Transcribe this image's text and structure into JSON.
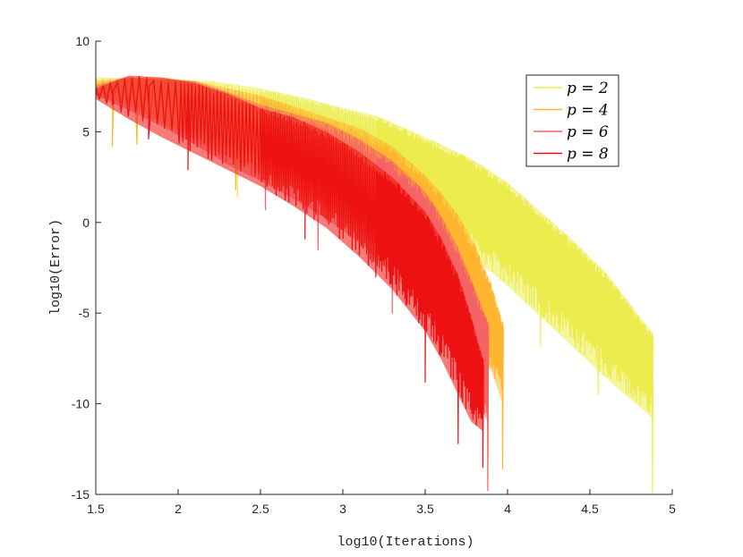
{
  "chart_data": {
    "type": "line",
    "title": "",
    "xlabel": "log10(Iterations)",
    "ylabel": "log10(Error)",
    "xlim": [
      1.5,
      5
    ],
    "ylim": [
      -15,
      10
    ],
    "xticks": [
      "1.5",
      "2",
      "2.5",
      "3",
      "3.5",
      "4",
      "4.5",
      "5"
    ],
    "yticks": [
      "10",
      "5",
      "0",
      "-5",
      "-10",
      "-15"
    ],
    "grid": false,
    "legend_position": "top-right",
    "series": [
      {
        "name": "p = 2",
        "legend_label": "p = 2",
        "color": "#ecec4f",
        "upper": [
          [
            1.5,
            8.0
          ],
          [
            1.9,
            7.9
          ],
          [
            2.2,
            7.8
          ],
          [
            2.5,
            7.4
          ],
          [
            2.8,
            6.8
          ],
          [
            3.0,
            6.3
          ],
          [
            3.2,
            5.9
          ],
          [
            3.4,
            5.1
          ],
          [
            3.6,
            4.3
          ],
          [
            3.8,
            3.4
          ],
          [
            4.0,
            2.2
          ],
          [
            4.2,
            0.6
          ],
          [
            4.4,
            -1.0
          ],
          [
            4.6,
            -2.8
          ],
          [
            4.88,
            -6.1
          ]
        ],
        "lower": [
          [
            1.5,
            7.5
          ],
          [
            1.9,
            6.5
          ],
          [
            2.2,
            5.5
          ],
          [
            2.5,
            4.6
          ],
          [
            2.8,
            3.7
          ],
          [
            3.0,
            2.9
          ],
          [
            3.2,
            1.9
          ],
          [
            3.4,
            0.8
          ],
          [
            3.6,
            -0.5
          ],
          [
            3.8,
            -2.0
          ],
          [
            4.0,
            -3.5
          ],
          [
            4.2,
            -5.2
          ],
          [
            4.4,
            -6.9
          ],
          [
            4.6,
            -8.6
          ],
          [
            4.88,
            -10.8
          ]
        ],
        "dips": [
          [
            2.36,
            1.4
          ],
          [
            2.6,
            2.1
          ],
          [
            3.2,
            0.6
          ],
          [
            3.6,
            -3.2
          ],
          [
            4.2,
            -6.8
          ],
          [
            4.55,
            -9.5
          ],
          [
            4.88,
            -15.0
          ]
        ]
      },
      {
        "name": "p = 4",
        "legend_label": "p = 4",
        "color": "#ffb52e",
        "upper": [
          [
            1.5,
            7.8
          ],
          [
            1.7,
            8.0
          ],
          [
            1.9,
            8.0
          ],
          [
            2.1,
            7.8
          ],
          [
            2.3,
            7.4
          ],
          [
            2.5,
            7.0
          ],
          [
            2.7,
            6.4
          ],
          [
            2.9,
            5.8
          ],
          [
            3.1,
            5.2
          ],
          [
            3.3,
            4.2
          ],
          [
            3.5,
            2.6
          ],
          [
            3.6,
            1.6
          ],
          [
            3.7,
            0.4
          ],
          [
            3.8,
            -1.2
          ],
          [
            3.9,
            -3.4
          ],
          [
            3.97,
            -5.5
          ],
          [
            3.97,
            -8.1
          ]
        ],
        "lower": [
          [
            1.5,
            7.0
          ],
          [
            1.7,
            6.5
          ],
          [
            1.9,
            5.5
          ],
          [
            2.1,
            4.6
          ],
          [
            2.3,
            3.6
          ],
          [
            2.5,
            2.8
          ],
          [
            2.7,
            2.0
          ],
          [
            2.9,
            0.9
          ],
          [
            3.1,
            -0.4
          ],
          [
            3.3,
            -2.0
          ],
          [
            3.5,
            -3.9
          ],
          [
            3.6,
            -5.2
          ],
          [
            3.7,
            -6.5
          ],
          [
            3.8,
            -7.5
          ],
          [
            3.9,
            -8.1
          ],
          [
            3.97,
            -10.0
          ]
        ],
        "dips": [
          [
            1.6,
            4.2
          ],
          [
            1.75,
            4.3
          ],
          [
            2.35,
            1.8
          ],
          [
            3.1,
            -1.5
          ],
          [
            3.6,
            -6.6
          ],
          [
            3.97,
            -13.6
          ]
        ]
      },
      {
        "name": "p = 6",
        "legend_label": "p = 6",
        "color": "#f46464",
        "upper": [
          [
            1.5,
            7.6
          ],
          [
            1.7,
            8.0
          ],
          [
            1.9,
            7.9
          ],
          [
            2.1,
            7.8
          ],
          [
            2.3,
            7.2
          ],
          [
            2.5,
            6.5
          ],
          [
            2.7,
            6.0
          ],
          [
            2.9,
            5.5
          ],
          [
            3.1,
            4.6
          ],
          [
            3.3,
            3.4
          ],
          [
            3.5,
            1.7
          ],
          [
            3.6,
            0.3
          ],
          [
            3.7,
            -1.4
          ],
          [
            3.8,
            -3.6
          ],
          [
            3.88,
            -5.5
          ],
          [
            3.88,
            -8.5
          ]
        ],
        "lower": [
          [
            1.5,
            7.0
          ],
          [
            1.7,
            6.2
          ],
          [
            1.9,
            5.3
          ],
          [
            2.1,
            4.3
          ],
          [
            2.3,
            3.2
          ],
          [
            2.5,
            2.3
          ],
          [
            2.7,
            1.3
          ],
          [
            2.9,
            0.2
          ],
          [
            3.1,
            -1.1
          ],
          [
            3.3,
            -2.8
          ],
          [
            3.5,
            -4.9
          ],
          [
            3.6,
            -6.3
          ],
          [
            3.7,
            -7.8
          ],
          [
            3.8,
            -9.6
          ],
          [
            3.88,
            -11.0
          ]
        ],
        "dips": [
          [
            2.53,
            0.7
          ],
          [
            2.85,
            -1.5
          ],
          [
            3.3,
            -5.0
          ],
          [
            3.7,
            -10.5
          ],
          [
            3.88,
            -14.8
          ]
        ]
      },
      {
        "name": "p = 8",
        "legend_label": "p = 8",
        "color": "#ee1111",
        "upper": [
          [
            1.5,
            7.4
          ],
          [
            1.7,
            8.1
          ],
          [
            1.9,
            8.0
          ],
          [
            2.1,
            7.7
          ],
          [
            2.3,
            7.1
          ],
          [
            2.5,
            6.3
          ],
          [
            2.7,
            5.8
          ],
          [
            2.9,
            5.0
          ],
          [
            3.1,
            3.9
          ],
          [
            3.3,
            2.5
          ],
          [
            3.5,
            0.6
          ],
          [
            3.6,
            -0.9
          ],
          [
            3.7,
            -2.9
          ],
          [
            3.78,
            -5.2
          ],
          [
            3.85,
            -7.5
          ]
        ],
        "lower": [
          [
            1.5,
            6.8
          ],
          [
            1.7,
            5.7
          ],
          [
            1.9,
            4.7
          ],
          [
            2.1,
            3.8
          ],
          [
            2.3,
            2.9
          ],
          [
            2.5,
            2.0
          ],
          [
            2.7,
            0.9
          ],
          [
            2.9,
            -0.3
          ],
          [
            3.1,
            -1.9
          ],
          [
            3.3,
            -3.7
          ],
          [
            3.5,
            -6.0
          ],
          [
            3.6,
            -7.6
          ],
          [
            3.7,
            -9.5
          ],
          [
            3.78,
            -11.0
          ],
          [
            3.85,
            -11.5
          ]
        ],
        "dips": [
          [
            1.6,
            6.5
          ],
          [
            1.82,
            4.6
          ],
          [
            2.06,
            2.9
          ],
          [
            2.77,
            -0.9
          ],
          [
            3.2,
            -3.0
          ],
          [
            3.5,
            -8.8
          ],
          [
            3.7,
            -12.2
          ],
          [
            3.85,
            -13.5
          ]
        ]
      }
    ]
  }
}
